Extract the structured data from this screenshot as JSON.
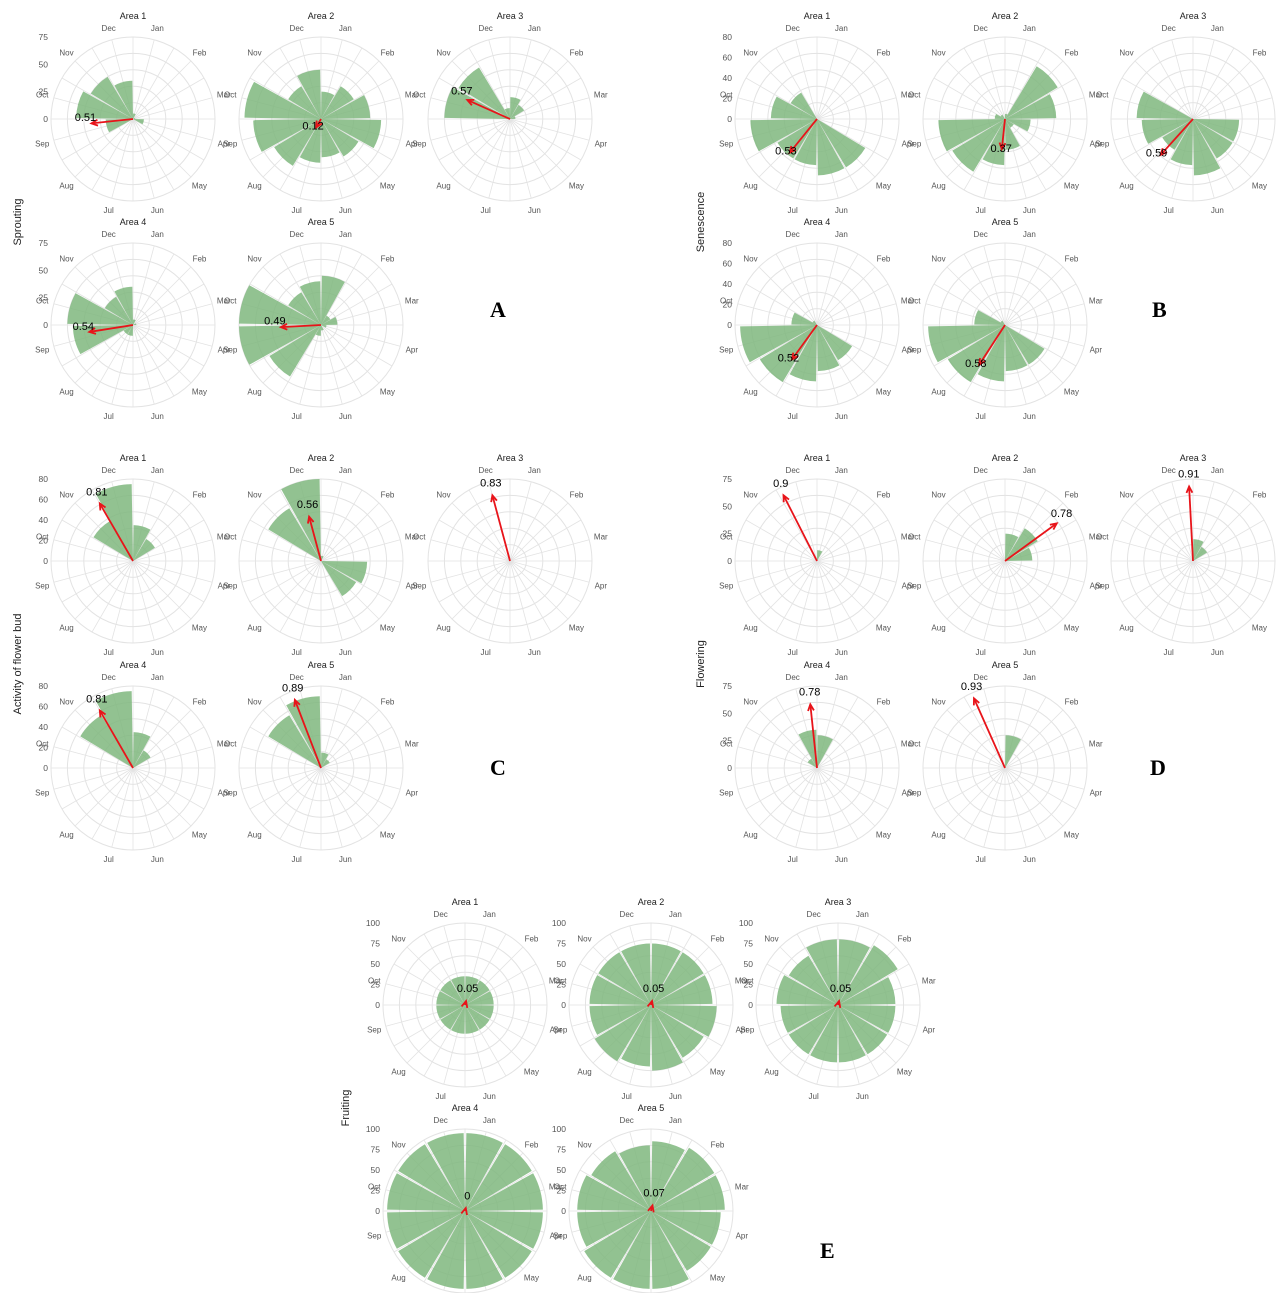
{
  "months": [
    "Jan",
    "Feb",
    "Mar",
    "Apr",
    "May",
    "Jun",
    "Jul",
    "Aug",
    "Sep",
    "Oct",
    "Nov",
    "Dec"
  ],
  "colors": {
    "bar": "#7fb77e",
    "arrow": "#e8141a",
    "grid": "#e3e3e3"
  },
  "chart_data": [
    {
      "type": "polar-bar",
      "panel": "A",
      "ylabel": "Sprouting",
      "rmax": 75,
      "ticks": [
        0,
        25,
        50,
        75
      ],
      "subplots": [
        {
          "title": "Area 1",
          "r_label": "0.51",
          "r": 0.51,
          "angle_month": 9.3,
          "values": [
            5,
            0,
            2,
            10,
            0,
            0,
            0,
            0,
            25,
            52,
            45,
            35
          ]
        },
        {
          "title": "Area 2",
          "r_label": "0.12",
          "r": 0.12,
          "angle_month": 7.5,
          "values": [
            25,
            35,
            45,
            55,
            40,
            35,
            40,
            50,
            62,
            70,
            35,
            45
          ]
        },
        {
          "title": "Area 3",
          "r_label": "0.57",
          "r": 0.57,
          "angle_month": 10.3,
          "values": [
            20,
            15,
            5,
            0,
            0,
            0,
            0,
            0,
            0,
            60,
            55,
            10
          ]
        },
        {
          "title": "Area 4",
          "r_label": "0.54",
          "r": 0.54,
          "angle_month": 9.2,
          "values": [
            5,
            0,
            3,
            0,
            0,
            0,
            10,
            10,
            55,
            60,
            30,
            35
          ]
        },
        {
          "title": "Area 5",
          "r_label": "0.49",
          "r": 0.49,
          "angle_month": 9.4,
          "values": [
            45,
            10,
            15,
            5,
            0,
            5,
            10,
            55,
            78,
            80,
            35,
            40
          ]
        }
      ]
    },
    {
      "type": "polar-bar",
      "panel": "B",
      "ylabel": "Senescence",
      "rmax": 80,
      "ticks": [
        0,
        20,
        40,
        60,
        80
      ],
      "subplots": [
        {
          "title": "Area 1",
          "r_label": "0.53",
          "r": 0.53,
          "angle_month": 7.8,
          "values": [
            0,
            0,
            0,
            0,
            55,
            55,
            45,
            45,
            65,
            45,
            30,
            0
          ]
        },
        {
          "title": "Area 2",
          "r_label": "0.37",
          "r": 0.37,
          "angle_month": 6.7,
          "values": [
            5,
            60,
            50,
            25,
            10,
            30,
            45,
            60,
            65,
            10,
            5,
            0
          ]
        },
        {
          "title": "Area 3",
          "r_label": "0.59",
          "r": 0.59,
          "angle_month": 7.9,
          "values": [
            0,
            0,
            0,
            45,
            45,
            55,
            45,
            35,
            50,
            55,
            0,
            0
          ]
        },
        {
          "title": "Area 4",
          "r_label": "0.52",
          "r": 0.52,
          "angle_month": 7.7,
          "values": [
            0,
            0,
            0,
            0,
            40,
            45,
            55,
            65,
            75,
            25,
            5,
            0
          ]
        },
        {
          "title": "Area 5",
          "r_label": "0.58",
          "r": 0.58,
          "angle_month": 7.6,
          "values": [
            0,
            0,
            0,
            0,
            45,
            45,
            55,
            65,
            75,
            30,
            5,
            0
          ]
        }
      ]
    },
    {
      "type": "polar-bar",
      "panel": "C",
      "ylabel": "Activity of flower bud",
      "rmax": 80,
      "ticks": [
        0,
        20,
        40,
        60,
        80
      ],
      "subplots": [
        {
          "title": "Area 1",
          "r_label": "0.81",
          "r": 0.81,
          "angle_month": 11.5,
          "values": [
            35,
            25,
            0,
            0,
            0,
            0,
            0,
            0,
            0,
            0,
            45,
            75
          ]
        },
        {
          "title": "Area 2",
          "r_label": "0.56",
          "r": 0.56,
          "angle_month": 12.0,
          "values": [
            5,
            0,
            0,
            45,
            40,
            0,
            0,
            0,
            0,
            0,
            60,
            80
          ]
        },
        {
          "title": "Area 3",
          "r_label": "0.83",
          "r": 0.83,
          "angle_month": 12.0,
          "values": [
            0,
            0,
            0,
            0,
            0,
            0,
            0,
            0,
            0,
            0,
            0,
            0
          ]
        },
        {
          "title": "Area 4",
          "r_label": "0.81",
          "r": 0.81,
          "angle_month": 11.5,
          "values": [
            35,
            20,
            0,
            0,
            0,
            0,
            0,
            0,
            0,
            0,
            60,
            75
          ]
        },
        {
          "title": "Area 5",
          "r_label": "0.89",
          "r": 0.89,
          "angle_month": 11.8,
          "values": [
            15,
            10,
            0,
            0,
            0,
            0,
            0,
            0,
            0,
            0,
            60,
            70
          ]
        }
      ]
    },
    {
      "type": "polar-bar",
      "panel": "D",
      "ylabel": "Flowering",
      "rmax": 75,
      "ticks": [
        0,
        25,
        50,
        75
      ],
      "subplots": [
        {
          "title": "Area 1",
          "r_label": "0.9",
          "r": 0.9,
          "angle_month": 11.6,
          "values": [
            10,
            0,
            0,
            0,
            0,
            0,
            0,
            0,
            0,
            0,
            0,
            0
          ]
        },
        {
          "title": "Area 2",
          "r_label": "0.78",
          "r": 0.78,
          "angle_month": 2.3,
          "values": [
            25,
            35,
            25,
            0,
            0,
            0,
            0,
            0,
            0,
            0,
            0,
            0
          ]
        },
        {
          "title": "Area 3",
          "r_label": "0.91",
          "r": 0.91,
          "angle_month": 12.4,
          "values": [
            20,
            15,
            0,
            0,
            0,
            0,
            0,
            0,
            0,
            0,
            0,
            0
          ]
        },
        {
          "title": "Area 4",
          "r_label": "0.78",
          "r": 0.78,
          "angle_month": 12.3,
          "values": [
            30,
            0,
            0,
            0,
            0,
            0,
            0,
            0,
            0,
            0,
            10,
            35
          ]
        },
        {
          "title": "Area 5",
          "r_label": "0.93",
          "r": 0.93,
          "angle_month": 11.7,
          "values": [
            30,
            0,
            0,
            0,
            0,
            0,
            0,
            0,
            0,
            0,
            0,
            0
          ]
        }
      ]
    },
    {
      "type": "polar-bar",
      "panel": "E",
      "ylabel": "Fruiting",
      "rmax": 100,
      "ticks": [
        0,
        25,
        50,
        75,
        100
      ],
      "subplots": [
        {
          "title": "Area 1",
          "r_label": "0.05",
          "r": 0.05,
          "angle_month": 1.0,
          "values": [
            35,
            35,
            35,
            35,
            35,
            35,
            35,
            35,
            35,
            35,
            35,
            35
          ]
        },
        {
          "title": "Area 2",
          "r_label": "0.05",
          "r": 0.05,
          "angle_month": 1.0,
          "values": [
            75,
            75,
            75,
            80,
            75,
            80,
            75,
            80,
            75,
            75,
            75,
            75
          ]
        },
        {
          "title": "Area 3",
          "r_label": "0.05",
          "r": 0.05,
          "angle_month": 1.0,
          "values": [
            80,
            85,
            70,
            70,
            70,
            70,
            70,
            70,
            70,
            75,
            70,
            80
          ]
        },
        {
          "title": "Area 4",
          "r_label": "0",
          "r": 0.0,
          "angle_month": 1.0,
          "values": [
            95,
            95,
            95,
            95,
            95,
            95,
            95,
            95,
            95,
            95,
            95,
            95
          ]
        },
        {
          "title": "Area 5",
          "r_label": "0.07",
          "r": 0.07,
          "angle_month": 1.0,
          "values": [
            85,
            90,
            90,
            85,
            85,
            95,
            95,
            95,
            90,
            90,
            85,
            80
          ]
        }
      ]
    }
  ]
}
